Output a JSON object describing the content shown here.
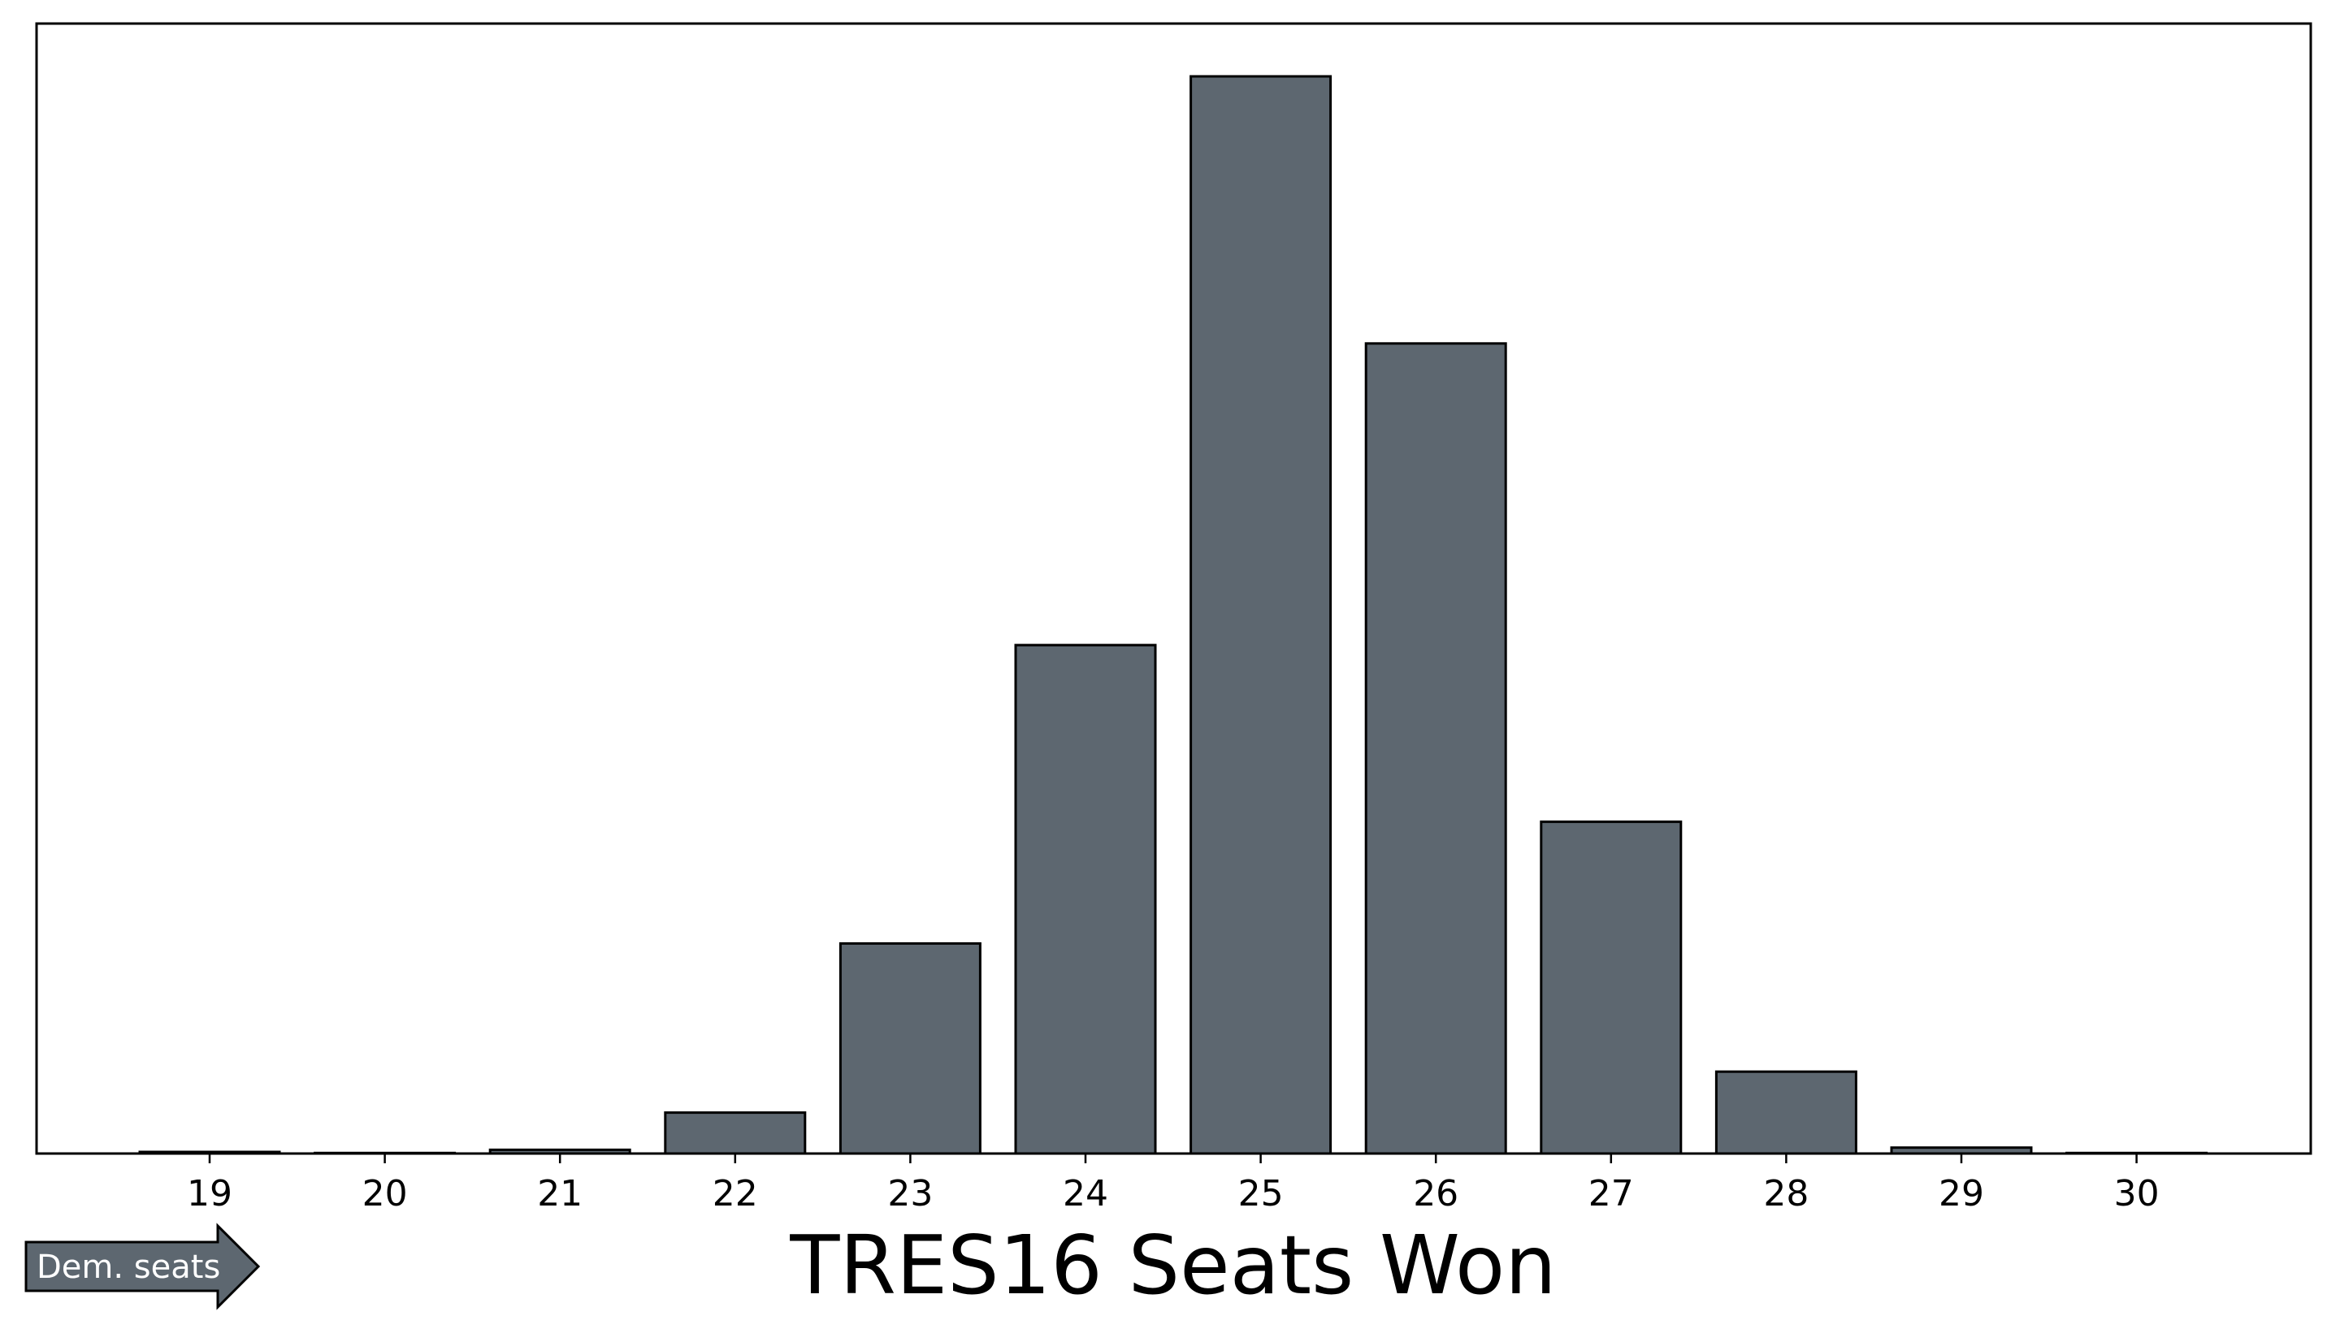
{
  "colors": {
    "bar_fill": "#5d6770",
    "bar_stroke": "#000000",
    "axes": "#000000",
    "background": "#ffffff",
    "arrow_fill": "#5d6770",
    "arrow_text": "#ffffff"
  },
  "chart_data": {
    "type": "bar",
    "title": "TRES16 Seats Won",
    "xlabel": "",
    "ylabel": "",
    "categories": [
      "19",
      "20",
      "21",
      "22",
      "23",
      "24",
      "25",
      "26",
      "27",
      "28",
      "29",
      "30"
    ],
    "values": [
      0.15,
      0.05,
      0.35,
      3.8,
      19.5,
      47.2,
      100,
      75.2,
      30.8,
      7.6,
      0.55,
      0.05
    ],
    "ylim": [
      0,
      104.9
    ],
    "y_ticks_shown": false,
    "grid": false,
    "legend": "none"
  },
  "annotation": {
    "arrow_label": "Dem. seats"
  }
}
